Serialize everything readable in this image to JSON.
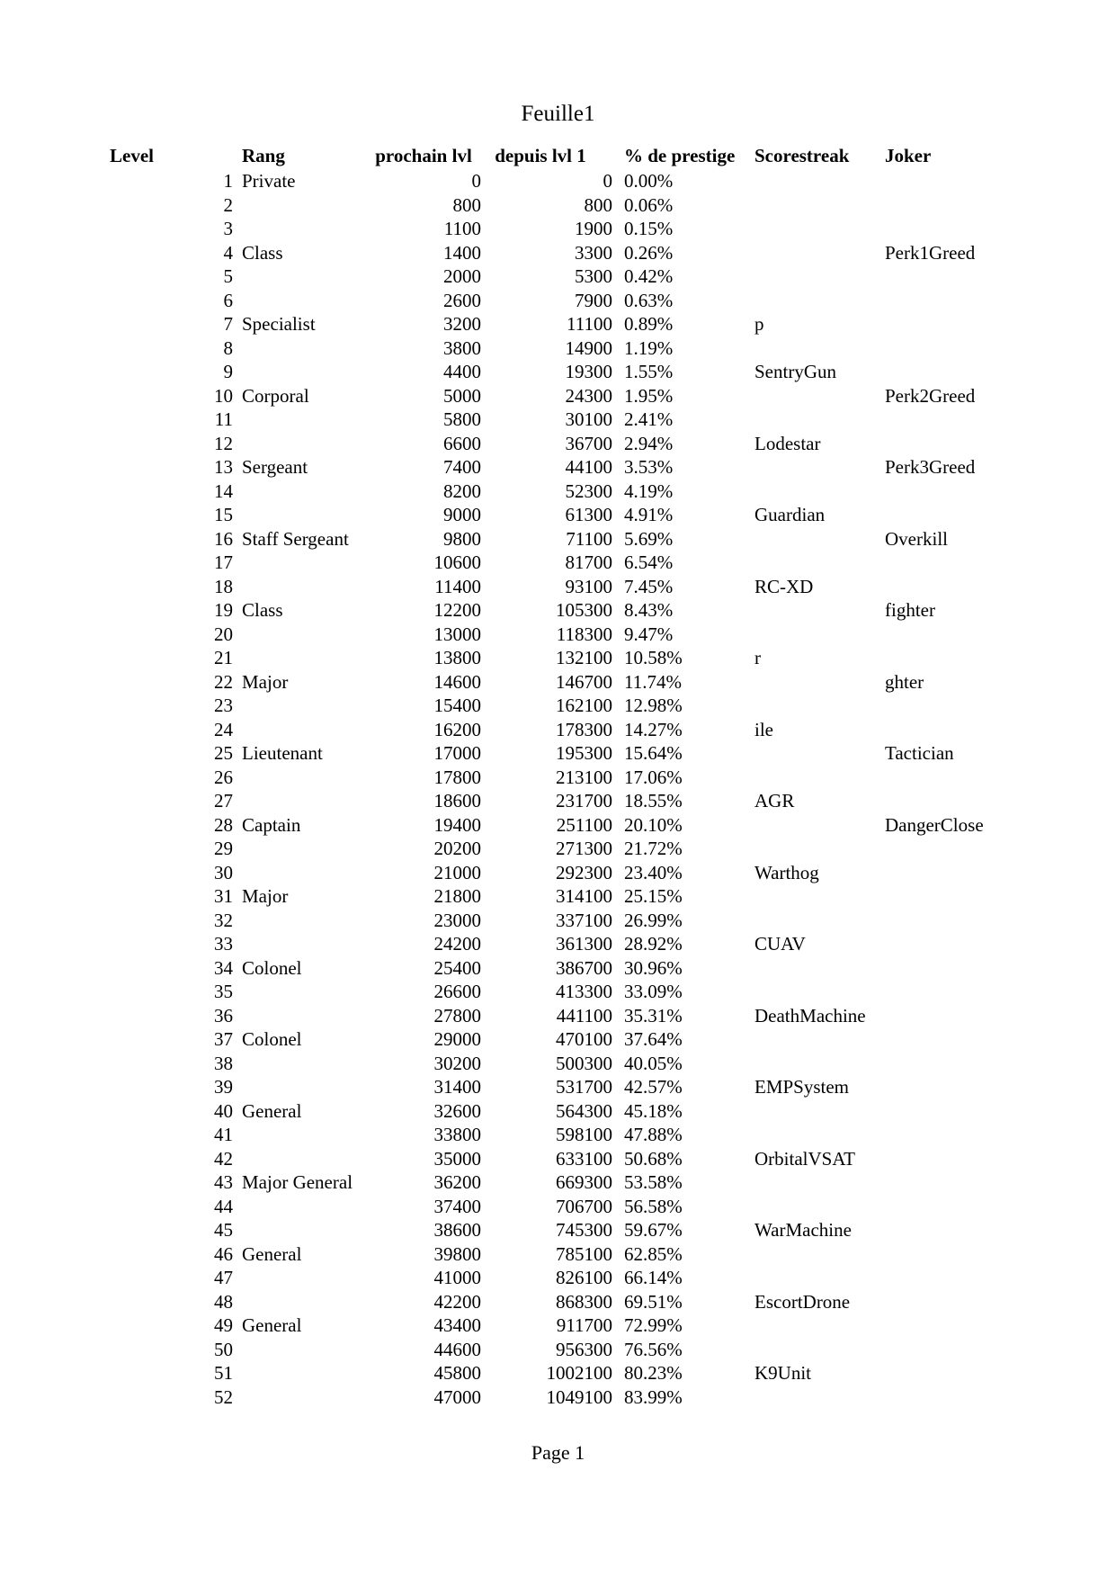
{
  "page": {
    "title": "Feuille1",
    "footer": "Page 1"
  },
  "table": {
    "headers": [
      "Level",
      "Rang",
      "prochain lvl",
      "depuis lvl 1",
      "% de prestige",
      "Scorestreak",
      "Joker"
    ],
    "rows": [
      [
        1,
        "Private",
        0,
        0,
        "0.00%",
        "",
        ""
      ],
      [
        2,
        "",
        800,
        800,
        "0.06%",
        "",
        ""
      ],
      [
        3,
        "",
        1100,
        1900,
        "0.15%",
        "",
        ""
      ],
      [
        4,
        "Class",
        1400,
        3300,
        "0.26%",
        "",
        "Perk1Greed"
      ],
      [
        5,
        "",
        2000,
        5300,
        "0.42%",
        "",
        ""
      ],
      [
        6,
        "",
        2600,
        7900,
        "0.63%",
        "",
        ""
      ],
      [
        7,
        "Specialist",
        3200,
        11100,
        "0.89%",
        "p",
        ""
      ],
      [
        8,
        "",
        3800,
        14900,
        "1.19%",
        "",
        ""
      ],
      [
        9,
        "",
        4400,
        19300,
        "1.55%",
        "SentryGun",
        ""
      ],
      [
        10,
        "Corporal",
        5000,
        24300,
        "1.95%",
        "",
        "Perk2Greed"
      ],
      [
        11,
        "",
        5800,
        30100,
        "2.41%",
        "",
        ""
      ],
      [
        12,
        "",
        6600,
        36700,
        "2.94%",
        "Lodestar",
        ""
      ],
      [
        13,
        "Sergeant",
        7400,
        44100,
        "3.53%",
        "",
        "Perk3Greed"
      ],
      [
        14,
        "",
        8200,
        52300,
        "4.19%",
        "",
        ""
      ],
      [
        15,
        "",
        9000,
        61300,
        "4.91%",
        "Guardian",
        ""
      ],
      [
        16,
        "Staff Sergeant",
        9800,
        71100,
        "5.69%",
        "",
        "Overkill"
      ],
      [
        17,
        "",
        10600,
        81700,
        "6.54%",
        "",
        ""
      ],
      [
        18,
        "",
        11400,
        93100,
        "7.45%",
        "RC-XD",
        ""
      ],
      [
        19,
        "Class",
        12200,
        105300,
        "8.43%",
        "",
        "fighter"
      ],
      [
        20,
        "",
        13000,
        118300,
        "9.47%",
        "",
        ""
      ],
      [
        21,
        "",
        13800,
        132100,
        "10.58%",
        "r",
        ""
      ],
      [
        22,
        "Major",
        14600,
        146700,
        "11.74%",
        "",
        "ghter"
      ],
      [
        23,
        "",
        15400,
        162100,
        "12.98%",
        "",
        ""
      ],
      [
        24,
        "",
        16200,
        178300,
        "14.27%",
        "ile",
        ""
      ],
      [
        25,
        "Lieutenant",
        17000,
        195300,
        "15.64%",
        "",
        "Tactician"
      ],
      [
        26,
        "",
        17800,
        213100,
        "17.06%",
        "",
        ""
      ],
      [
        27,
        "",
        18600,
        231700,
        "18.55%",
        "AGR",
        ""
      ],
      [
        28,
        "Captain",
        19400,
        251100,
        "20.10%",
        "",
        "DangerClose"
      ],
      [
        29,
        "",
        20200,
        271300,
        "21.72%",
        "",
        ""
      ],
      [
        30,
        "",
        21000,
        292300,
        "23.40%",
        "Warthog",
        ""
      ],
      [
        31,
        "Major",
        21800,
        314100,
        "25.15%",
        "",
        ""
      ],
      [
        32,
        "",
        23000,
        337100,
        "26.99%",
        "",
        ""
      ],
      [
        33,
        "",
        24200,
        361300,
        "28.92%",
        "CUAV",
        ""
      ],
      [
        34,
        "Colonel",
        25400,
        386700,
        "30.96%",
        "",
        ""
      ],
      [
        35,
        "",
        26600,
        413300,
        "33.09%",
        "",
        ""
      ],
      [
        36,
        "",
        27800,
        441100,
        "35.31%",
        "DeathMachine",
        ""
      ],
      [
        37,
        "Colonel",
        29000,
        470100,
        "37.64%",
        "",
        ""
      ],
      [
        38,
        "",
        30200,
        500300,
        "40.05%",
        "",
        ""
      ],
      [
        39,
        "",
        31400,
        531700,
        "42.57%",
        "EMPSystem",
        ""
      ],
      [
        40,
        "General",
        32600,
        564300,
        "45.18%",
        "",
        ""
      ],
      [
        41,
        "",
        33800,
        598100,
        "47.88%",
        "",
        ""
      ],
      [
        42,
        "",
        35000,
        633100,
        "50.68%",
        "OrbitalVSAT",
        ""
      ],
      [
        43,
        "Major General",
        36200,
        669300,
        "53.58%",
        "",
        ""
      ],
      [
        44,
        "",
        37400,
        706700,
        "56.58%",
        "",
        ""
      ],
      [
        45,
        "",
        38600,
        745300,
        "59.67%",
        "WarMachine",
        ""
      ],
      [
        46,
        "General",
        39800,
        785100,
        "62.85%",
        "",
        ""
      ],
      [
        47,
        "",
        41000,
        826100,
        "66.14%",
        "",
        ""
      ],
      [
        48,
        "",
        42200,
        868300,
        "69.51%",
        "EscortDrone",
        ""
      ],
      [
        49,
        "General",
        43400,
        911700,
        "72.99%",
        "",
        ""
      ],
      [
        50,
        "",
        44600,
        956300,
        "76.56%",
        "",
        ""
      ],
      [
        51,
        "",
        45800,
        1002100,
        "80.23%",
        "K9Unit",
        ""
      ],
      [
        52,
        "",
        47000,
        1049100,
        "83.99%",
        "",
        ""
      ]
    ]
  }
}
